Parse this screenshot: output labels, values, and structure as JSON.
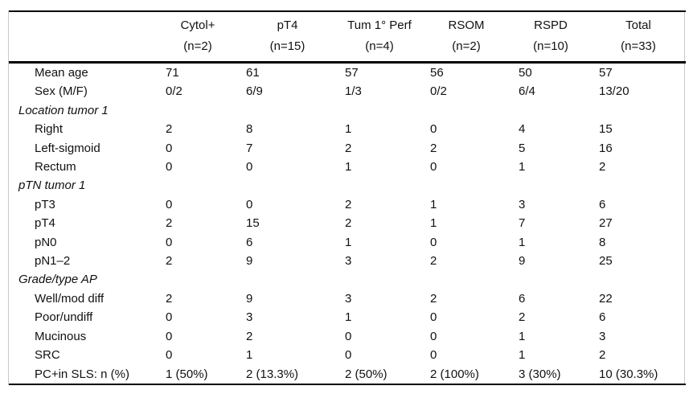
{
  "table": {
    "columns": [
      {
        "label": "Cytol+",
        "n": "(n=2)"
      },
      {
        "label": "pT4",
        "n": "(n=15)"
      },
      {
        "label": "Tum 1° Perf",
        "n": "(n=4)"
      },
      {
        "label": "RSOM",
        "n": "(n=2)"
      },
      {
        "label": "RSPD",
        "n": "(n=10)"
      },
      {
        "label": "Total",
        "n": "(n=33)"
      }
    ],
    "rows": [
      {
        "type": "data",
        "label": "Mean age",
        "values": [
          "71",
          "61",
          "57",
          "56",
          "50",
          "57"
        ]
      },
      {
        "type": "data",
        "label": "Sex (M/F)",
        "values": [
          "0/2",
          "6/9",
          "1/3",
          "0/2",
          "6/4",
          "13/20"
        ]
      },
      {
        "type": "section",
        "label": "Location tumor 1",
        "values": [
          "",
          "",
          "",
          "",
          "",
          ""
        ]
      },
      {
        "type": "data",
        "label": "Right",
        "values": [
          "2",
          "8",
          "1",
          "0",
          "4",
          "15"
        ]
      },
      {
        "type": "data",
        "label": "Left-sigmoid",
        "values": [
          "0",
          "7",
          "2",
          "2",
          "5",
          "16"
        ]
      },
      {
        "type": "data",
        "label": "Rectum",
        "values": [
          "0",
          "0",
          "1",
          "0",
          "1",
          "2"
        ]
      },
      {
        "type": "section",
        "label": "pTN tumor 1",
        "values": [
          "",
          "",
          "",
          "",
          "",
          ""
        ]
      },
      {
        "type": "data",
        "label": "pT3",
        "values": [
          "0",
          "0",
          "2",
          "1",
          "3",
          "6"
        ]
      },
      {
        "type": "data",
        "label": "pT4",
        "values": [
          "2",
          "15",
          "2",
          "1",
          "7",
          "27"
        ]
      },
      {
        "type": "data",
        "label": "pN0",
        "values": [
          "0",
          "6",
          "1",
          "0",
          "1",
          "8"
        ]
      },
      {
        "type": "data",
        "label": "pN1–2",
        "values": [
          "2",
          "9",
          "3",
          "2",
          "9",
          "25"
        ]
      },
      {
        "type": "section",
        "label": "Grade/type AP",
        "values": [
          "",
          "",
          "",
          "",
          "",
          ""
        ]
      },
      {
        "type": "data",
        "label": "Well/mod diff",
        "values": [
          "2",
          "9",
          "3",
          "2",
          "6",
          "22"
        ]
      },
      {
        "type": "data",
        "label": "Poor/undiff",
        "values": [
          "0",
          "3",
          "1",
          "0",
          "2",
          "6"
        ]
      },
      {
        "type": "data",
        "label": "Mucinous",
        "values": [
          "0",
          "2",
          "0",
          "0",
          "1",
          "3"
        ]
      },
      {
        "type": "data",
        "label": "SRC",
        "values": [
          "0",
          "1",
          "0",
          "0",
          "1",
          "2"
        ]
      },
      {
        "type": "data",
        "label": "PC+in SLS: n (%)",
        "values": [
          "1 (50%)",
          "2 (13.3%)",
          "2 (50%)",
          "2 (100%)",
          "3 (30%)",
          "10 (30.3%)"
        ]
      }
    ]
  },
  "colors": {
    "rule": "#000000",
    "frame": "#c9c9c9",
    "text": "#111111",
    "background": "#ffffff"
  }
}
